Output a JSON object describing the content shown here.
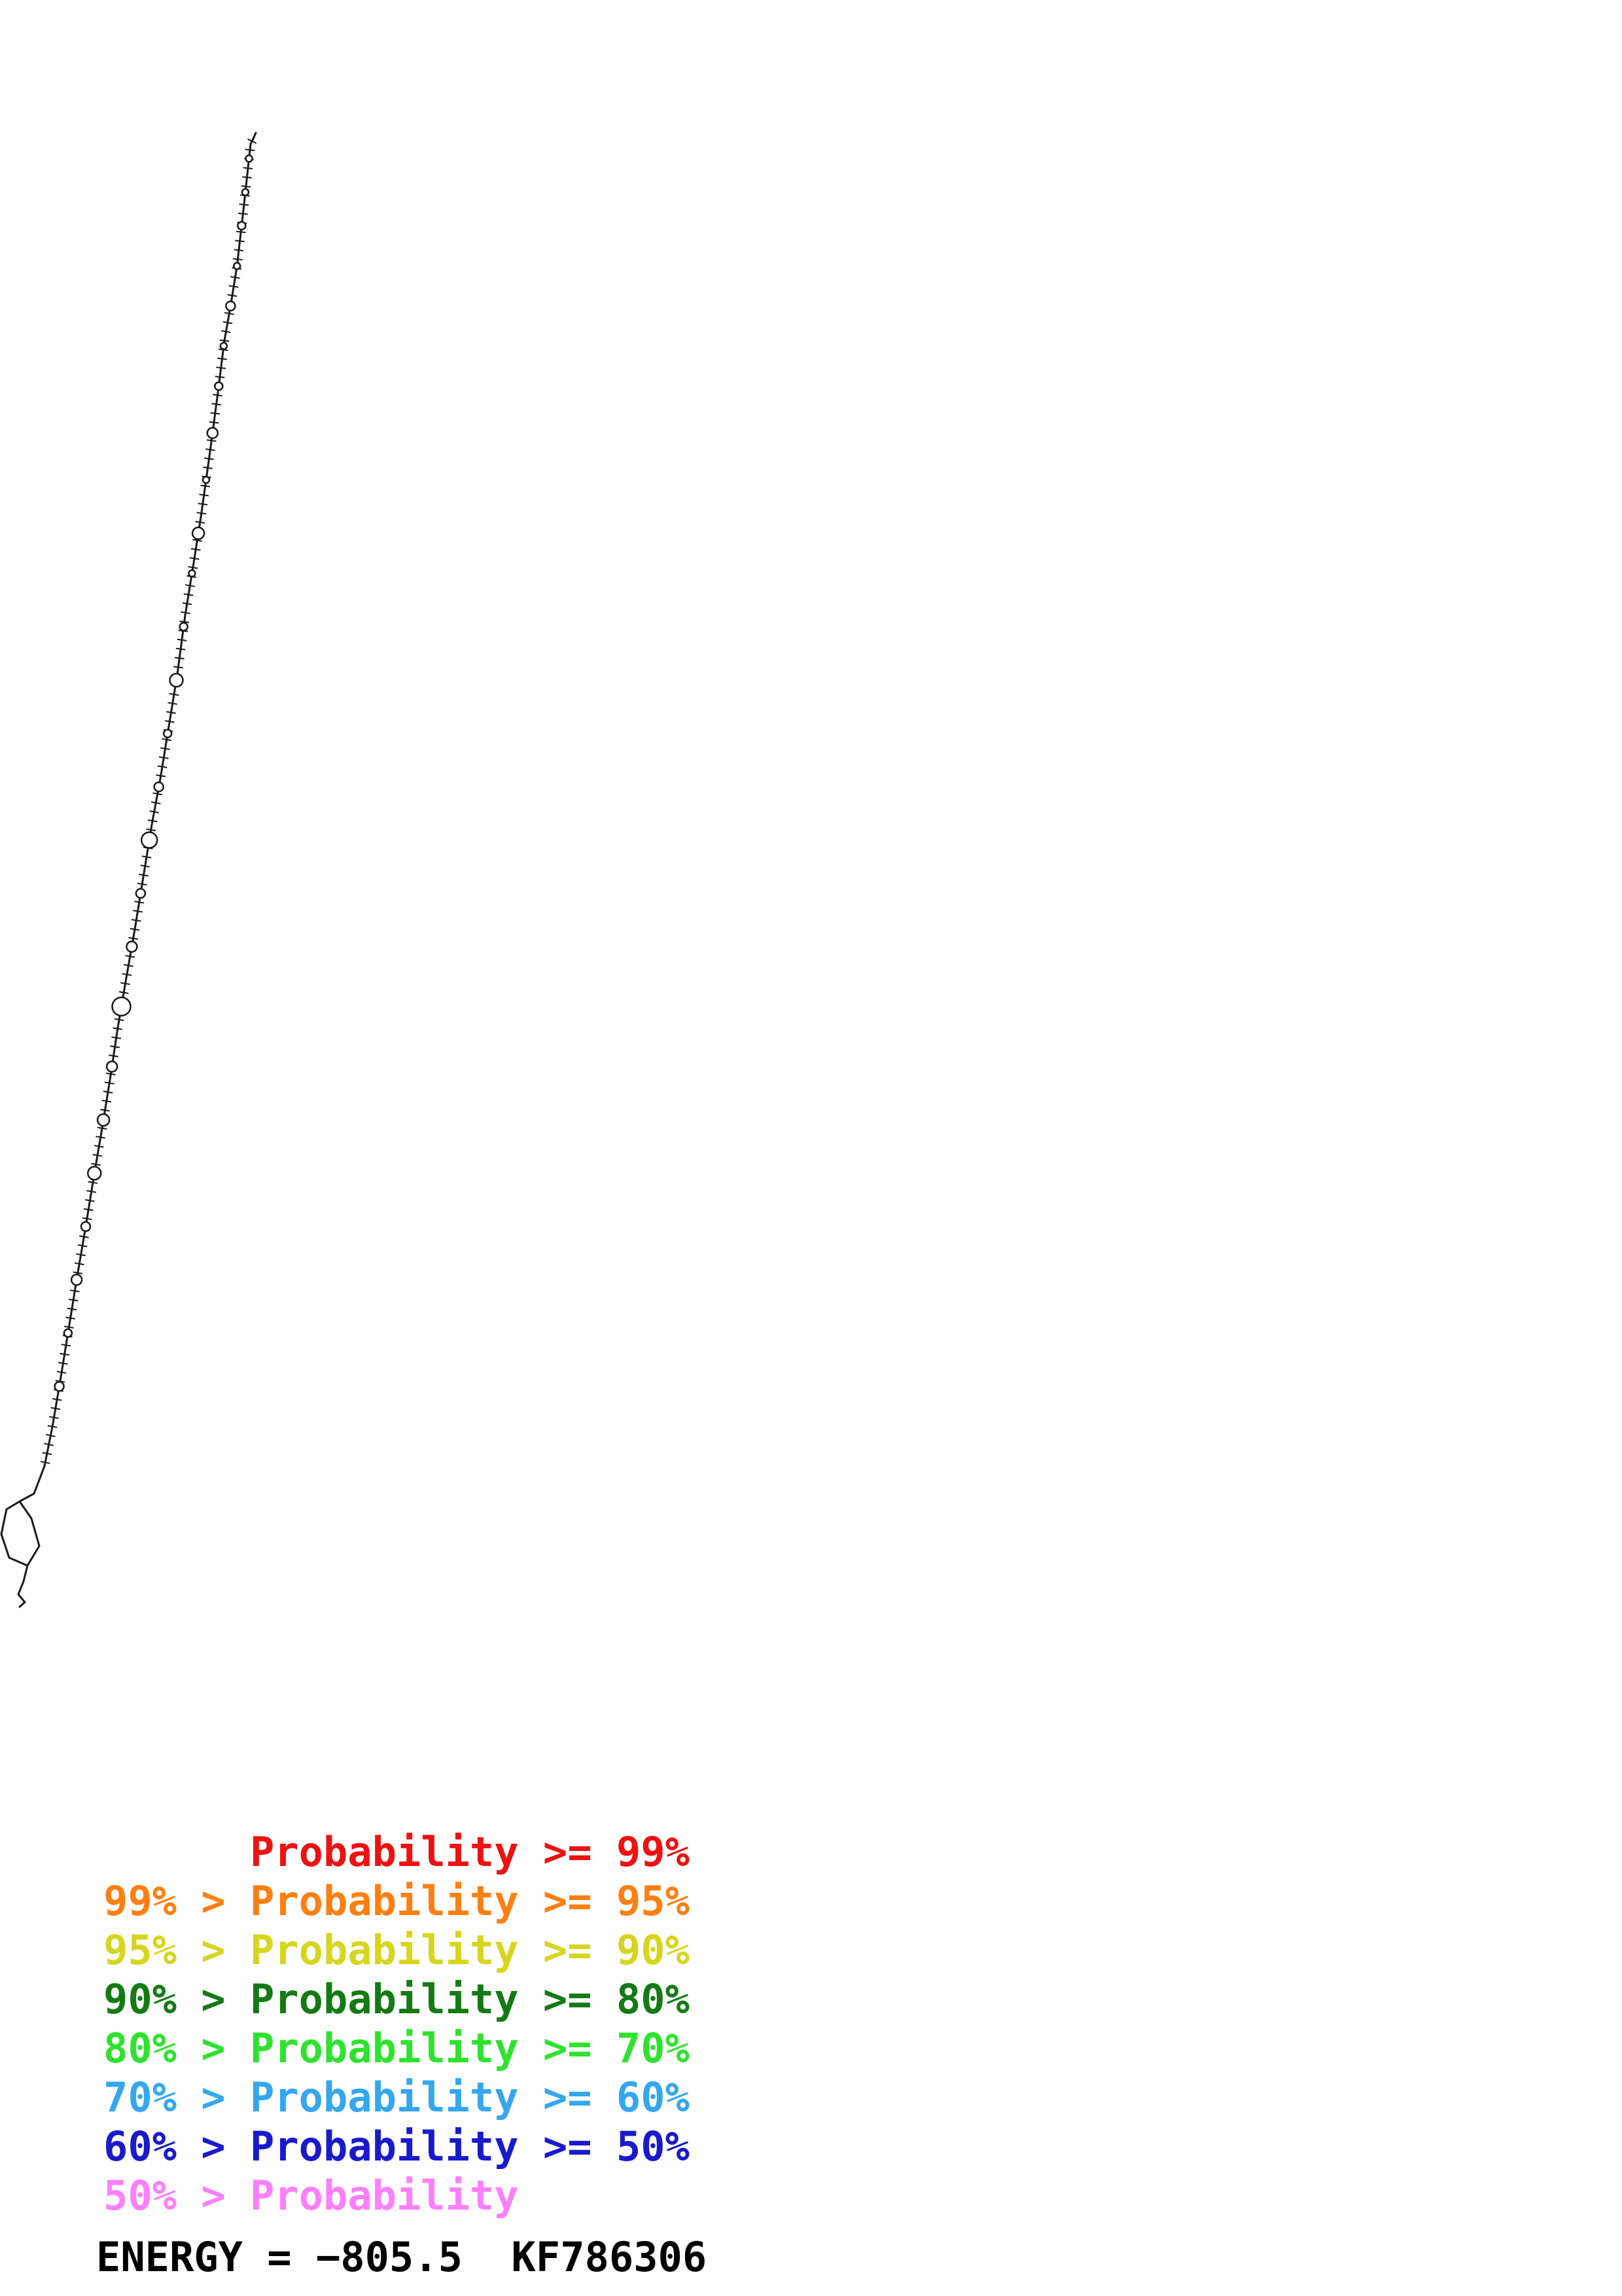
{
  "page": {
    "background": "#ffffff"
  },
  "plot": {
    "name": "rna-secondary-structure-drawing",
    "color": "#1a1a1a",
    "stroke_width": 3,
    "tick_spacing": 14,
    "tick_length": 13,
    "spine": [
      [
        391,
        203
      ],
      [
        386,
        214
      ],
      [
        383,
        220
      ],
      [
        371,
        330
      ],
      [
        362,
        408
      ],
      [
        352,
        470
      ],
      [
        343,
        520
      ],
      [
        333,
        600
      ],
      [
        321,
        690
      ],
      [
        307,
        790
      ],
      [
        296,
        860
      ],
      [
        283,
        940
      ],
      [
        271,
        1030
      ],
      [
        258,
        1110
      ],
      [
        245,
        1190
      ],
      [
        232,
        1260
      ],
      [
        219,
        1340
      ],
      [
        206,
        1420
      ],
      [
        192,
        1500
      ],
      [
        180,
        1570
      ],
      [
        168,
        1650
      ],
      [
        155,
        1730
      ],
      [
        143,
        1800
      ],
      [
        130,
        1880
      ],
      [
        118,
        1950
      ],
      [
        105,
        2030
      ],
      [
        92,
        2110
      ],
      [
        80,
        2180
      ],
      [
        68,
        2240
      ]
    ],
    "loop_fractions": [
      [
        0.02,
        5
      ],
      [
        0.045,
        5
      ],
      [
        0.07,
        6
      ],
      [
        0.1,
        5
      ],
      [
        0.13,
        7
      ],
      [
        0.16,
        5
      ],
      [
        0.19,
        6
      ],
      [
        0.225,
        8
      ],
      [
        0.26,
        5
      ],
      [
        0.3,
        9
      ],
      [
        0.33,
        5
      ],
      [
        0.37,
        6
      ],
      [
        0.41,
        10
      ],
      [
        0.45,
        6
      ],
      [
        0.49,
        7
      ],
      [
        0.53,
        12
      ],
      [
        0.57,
        7
      ],
      [
        0.61,
        8
      ],
      [
        0.655,
        14
      ],
      [
        0.7,
        8
      ],
      [
        0.74,
        9
      ],
      [
        0.78,
        10
      ],
      [
        0.82,
        7
      ],
      [
        0.86,
        8
      ],
      [
        0.9,
        6
      ],
      [
        0.94,
        7
      ]
    ],
    "end_loop": [
      [
        68,
        2240
      ],
      [
        52,
        2282
      ],
      [
        30,
        2294
      ],
      [
        10,
        2306
      ],
      [
        2,
        2344
      ],
      [
        14,
        2380
      ],
      [
        42,
        2392
      ],
      [
        60,
        2362
      ],
      [
        48,
        2320
      ],
      [
        30,
        2294
      ]
    ],
    "tail": [
      [
        42,
        2392
      ],
      [
        36,
        2416
      ],
      [
        28,
        2436
      ],
      [
        38,
        2448
      ],
      [
        30,
        2455
      ]
    ]
  },
  "legend": {
    "items": [
      {
        "label": "      Probability >= 99%",
        "color": "#ee1111"
      },
      {
        "label": "99% > Probability >= 95%",
        "color": "#ff7f11"
      },
      {
        "label": "95% > Probability >= 90%",
        "color": "#d6d61f"
      },
      {
        "label": "90% > Probability >= 80%",
        "color": "#157a15"
      },
      {
        "label": "80% > Probability >= 70%",
        "color": "#2ee32e"
      },
      {
        "label": "70% > Probability >= 60%",
        "color": "#35a7ec"
      },
      {
        "label": "60% > Probability >= 50%",
        "color": "#1a1acc"
      },
      {
        "label": "50% > Probability",
        "color": "#ff7fff"
      }
    ]
  },
  "footer": {
    "energy_label": "ENERGY = −805.5  KF786306"
  }
}
